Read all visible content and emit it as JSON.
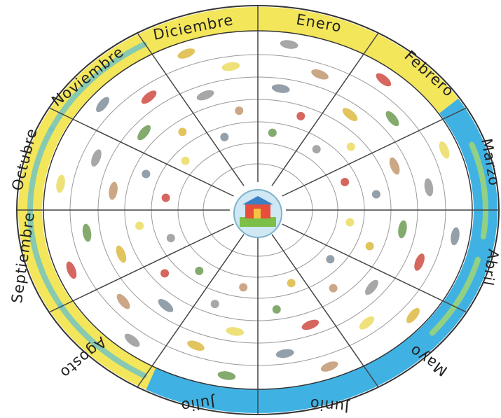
{
  "months": [
    "Enero",
    "Febrero",
    "Marzo",
    "Abril",
    "Mayo",
    "Junio",
    "Julio",
    "Agosto",
    "Septiembre",
    "Octubre",
    "Noviembre",
    "Diciembre"
  ]
}
